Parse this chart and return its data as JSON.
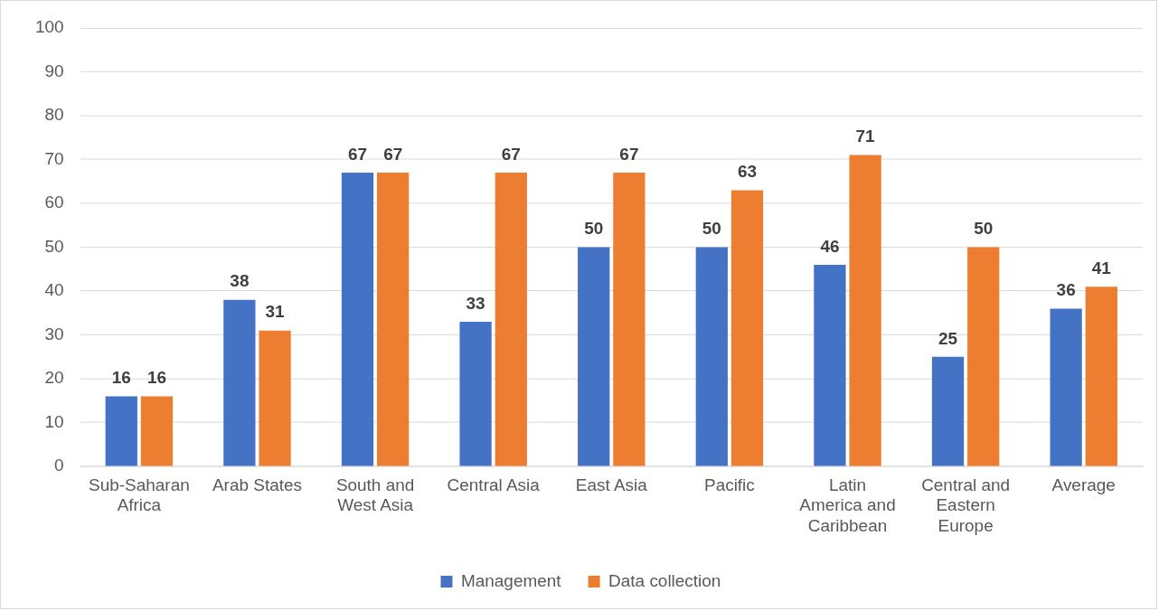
{
  "chart_data": {
    "type": "bar",
    "categories": [
      "Sub-Saharan Africa",
      "Arab States",
      "South and West Asia",
      "Central Asia",
      "East Asia",
      "Pacific",
      "Latin America and Caribbean",
      "Central and Eastern Europe",
      "Average"
    ],
    "series": [
      {
        "name": "Management",
        "color": "#4472c4",
        "values": [
          16,
          38,
          67,
          33,
          50,
          50,
          46,
          25,
          36
        ]
      },
      {
        "name": "Data collection",
        "color": "#ed7d31",
        "values": [
          16,
          31,
          67,
          67,
          67,
          63,
          71,
          50,
          41
        ]
      }
    ],
    "ylim": [
      0,
      100
    ],
    "yticks": [
      0,
      10,
      20,
      30,
      40,
      50,
      60,
      70,
      80,
      90,
      100
    ],
    "grid": "y",
    "legend": "bottom",
    "data_labels": true
  }
}
